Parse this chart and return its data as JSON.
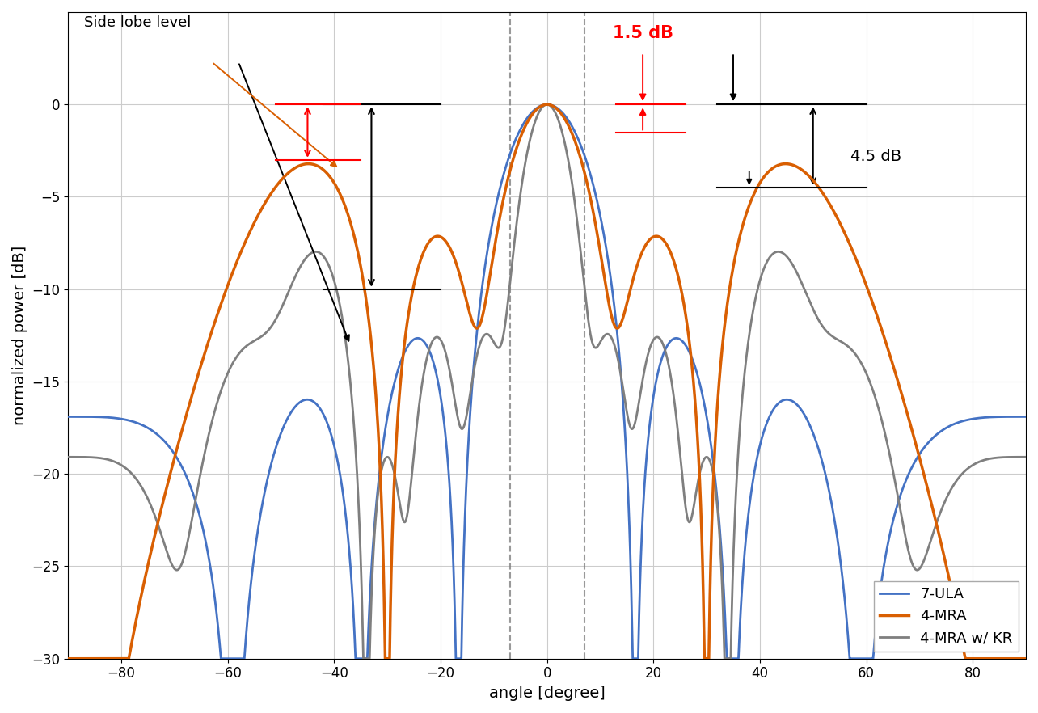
{
  "xlabel": "angle [degree]",
  "ylabel": "normalized power [dB]",
  "xlim": [
    -90,
    90
  ],
  "ylim": [
    -30,
    5
  ],
  "yticks": [
    0,
    -5,
    -10,
    -15,
    -20,
    -25,
    -30
  ],
  "xticks": [
    -80,
    -60,
    -40,
    -20,
    0,
    20,
    40,
    60,
    80
  ],
  "dashed_lines": [
    -7,
    7
  ],
  "ula_color": "#4472c4",
  "mra_color": "#d95f02",
  "kr_color": "#7f7f7f",
  "ula_label": "7-ULA",
  "mra_label": "4-MRA",
  "kr_label": "4-MRA w/ KR",
  "legend_loc": "lower right",
  "figsize": [
    12.84,
    8.82
  ],
  "dpi": 100,
  "floor_db": -30,
  "side_lobe_label": "Side lobe level",
  "label_15dB": "1.5 dB",
  "label_45dB": "4.5 dB"
}
